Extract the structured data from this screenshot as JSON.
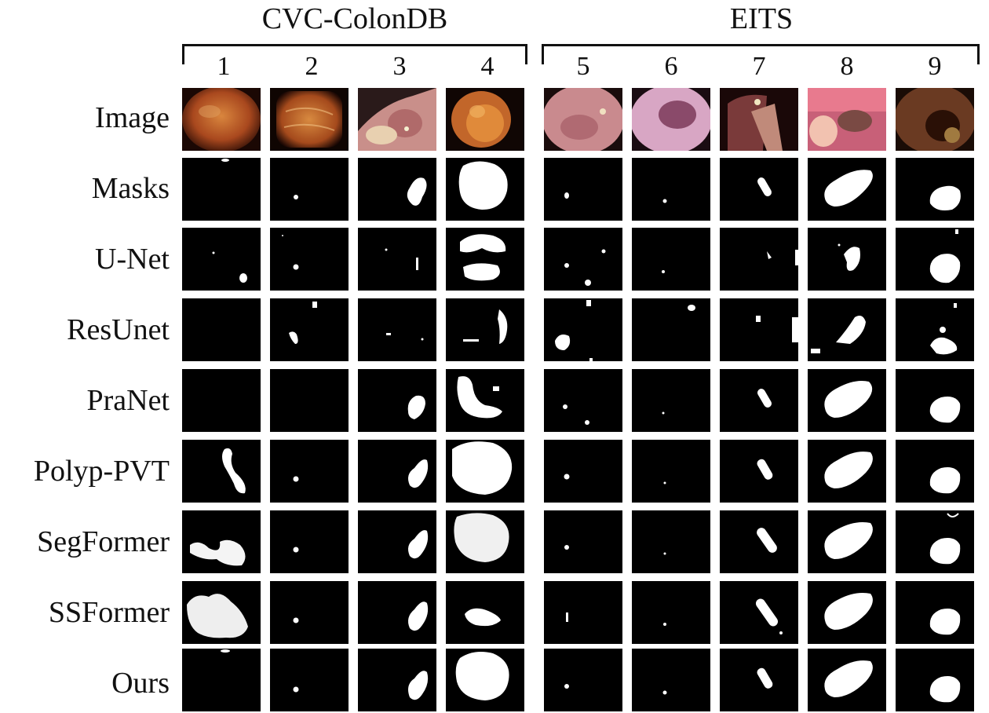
{
  "groups": [
    {
      "title": "CVC-ColonDB",
      "columns": [
        "1",
        "2",
        "3",
        "4"
      ]
    },
    {
      "title": "EITS",
      "columns": [
        "5",
        "6",
        "7",
        "8",
        "9"
      ]
    }
  ],
  "rows": [
    "Image",
    "Masks",
    "U-Net",
    "ResUnet",
    "PraNet",
    "Polyp-PVT",
    "SegFormer",
    "SSFormer",
    "Ours"
  ],
  "colors": {
    "background": "#ffffff",
    "mask_background": "#000000",
    "mask_foreground": "#ffffff"
  }
}
